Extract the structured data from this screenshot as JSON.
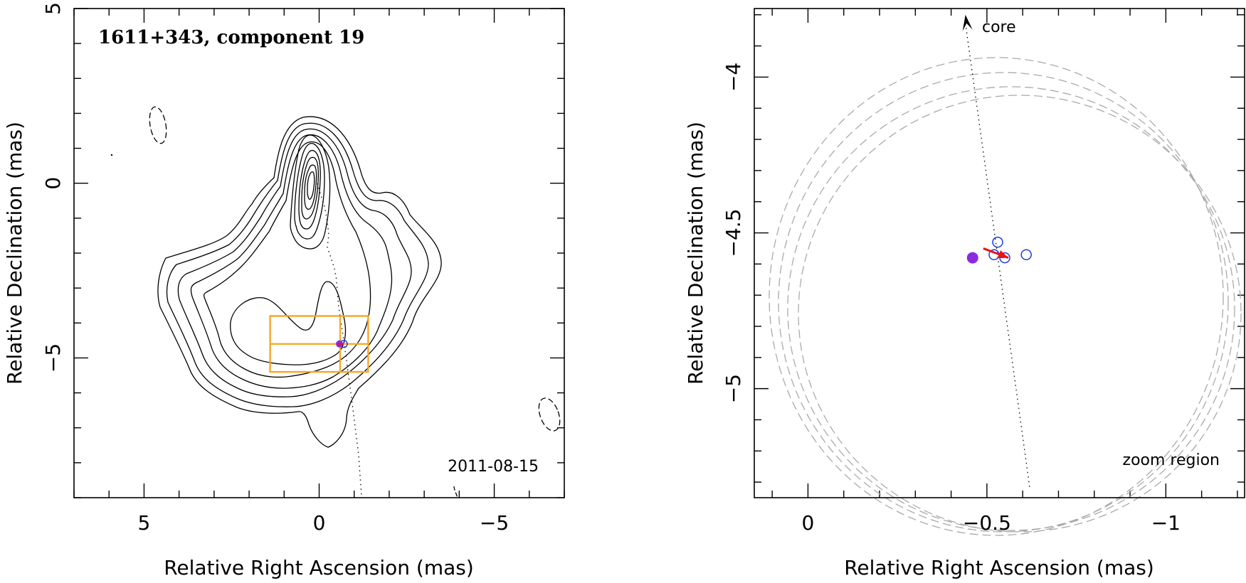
{
  "chart_data": [
    {
      "type": "contour",
      "title": "1611+343, component 19",
      "date_label": "2011-08-15",
      "xlabel": "Relative Right Ascension (mas)",
      "ylabel": "Relative Declination (mas)",
      "xlim": [
        7,
        -7
      ],
      "ylim": [
        -9,
        5
      ],
      "xticks": [
        5,
        0,
        -5
      ],
      "xtick_labels": [
        "5",
        "0",
        "−5"
      ],
      "yticks": [
        5,
        0,
        -5
      ],
      "ytick_labels": [
        "5",
        "0",
        "−5"
      ],
      "component_position": [
        -0.6,
        -4.6
      ],
      "zoom_box": {
        "x": [
          1.4,
          -1.4
        ],
        "y": [
          -3.8,
          -5.4
        ]
      },
      "colors": {
        "contour": "#000000",
        "zoom_box": "#f5a623",
        "component": "#8a2be2",
        "model": "#1e3cdc"
      }
    },
    {
      "type": "scatter",
      "core_label": "core",
      "region_label": "zoom region",
      "xlabel": "Relative Right Ascension (mas)",
      "ylabel": "Relative Declination (mas)",
      "xlim": [
        0.15,
        -1.22
      ],
      "ylim": [
        -5.35,
        -3.78
      ],
      "xticks": [
        0,
        -0.5,
        -1
      ],
      "xtick_labels": [
        "0",
        "−0.5",
        "−1"
      ],
      "yticks": [
        -4,
        -4.5,
        -5
      ],
      "ytick_labels": [
        "−4",
        "−4.5",
        "−5"
      ],
      "filled_point": {
        "x": -0.46,
        "y": -4.58
      },
      "open_points": [
        {
          "x": -0.52,
          "y": -4.57
        },
        {
          "x": -0.53,
          "y": -4.53
        },
        {
          "x": -0.55,
          "y": -4.58
        },
        {
          "x": -0.61,
          "y": -4.57
        }
      ],
      "velocity_vector": {
        "from": [
          -0.49,
          -4.55
        ],
        "to": [
          -0.56,
          -4.58
        ]
      },
      "ridge_line": {
        "from": [
          -0.44,
          -3.8
        ],
        "to": [
          -0.62,
          -5.32
        ]
      },
      "colors": {
        "filled": "#8a2be2",
        "open": "#1e3cdc",
        "vector": "#ee1111",
        "circles": "#aaaaaa"
      }
    }
  ]
}
